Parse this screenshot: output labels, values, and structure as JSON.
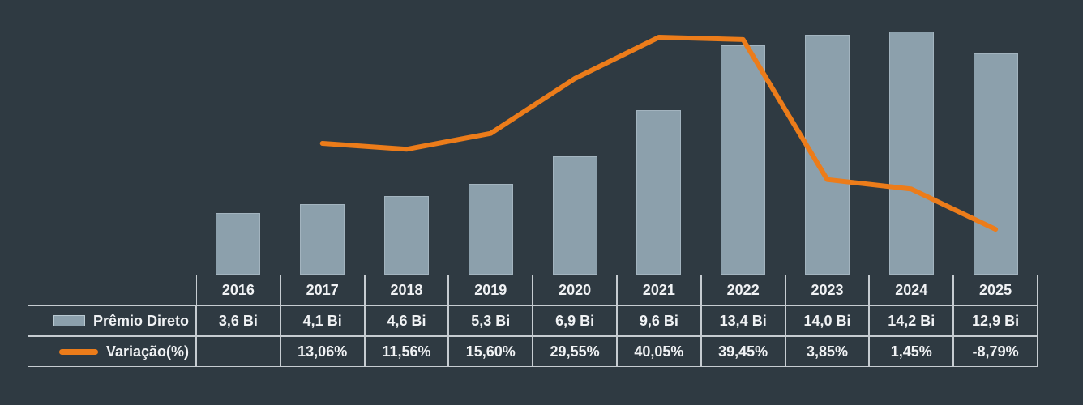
{
  "colors": {
    "background": "#2F3A42",
    "bar": "#8CA0AC",
    "line": "#EC7C1A",
    "table_border": "#C6CCD1",
    "text": "#F0F2F4"
  },
  "chart_data": {
    "type": "bar",
    "subtype": "combo-bar-line-with-data-table",
    "title": "",
    "xlabel": "",
    "ylabel": "",
    "grid": false,
    "legend_position": "data-table-left-column",
    "categories": [
      "2016",
      "2017",
      "2018",
      "2019",
      "2020",
      "2021",
      "2022",
      "2023",
      "2024",
      "2025"
    ],
    "series": [
      {
        "name": "Prêmio Direto",
        "chart_type": "bar",
        "unit": "Bi",
        "values": [
          3.6,
          4.1,
          4.6,
          5.3,
          6.9,
          9.6,
          13.4,
          14.0,
          14.2,
          12.9
        ],
        "labels": [
          "3,6 Bi",
          "4,1 Bi",
          "4,6 Bi",
          "5,3 Bi",
          "6,9 Bi",
          "9,6 Bi",
          "13,4 Bi",
          "14,0 Bi",
          "14,2 Bi",
          "12,9 Bi"
        ],
        "color": "#8CA0AC"
      },
      {
        "name": "Variação(%)",
        "chart_type": "line",
        "unit": "%",
        "values": [
          null,
          13.06,
          11.56,
          15.6,
          29.55,
          40.05,
          39.45,
          3.85,
          1.45,
          -8.79
        ],
        "labels": [
          "",
          "13,06%",
          "11,56%",
          "15,60%",
          "29,55%",
          "40,05%",
          "39,45%",
          "3,85%",
          "1,45%",
          "-8,79%"
        ],
        "color": "#EC7C1A"
      }
    ],
    "bar_ylim": [
      0,
      14.2
    ],
    "line_ylim": [
      -8.79,
      40.05
    ]
  }
}
